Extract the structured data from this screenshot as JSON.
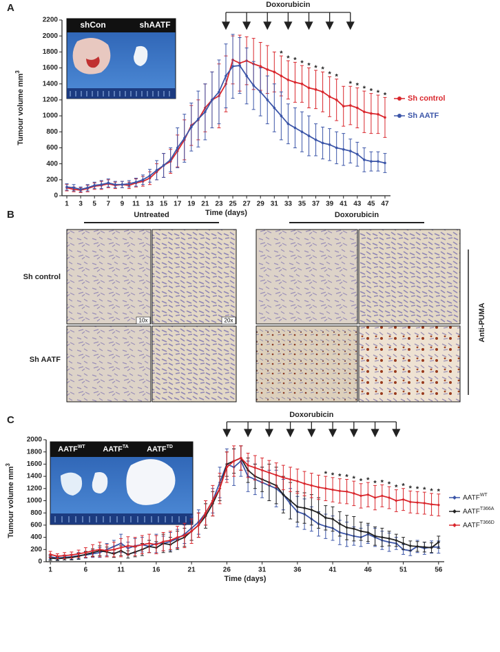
{
  "panel_labels": [
    "A",
    "B",
    "C"
  ],
  "chart_data": [
    {
      "type": "line",
      "ylabel": "Tumour volume mm",
      "ylabel_superscript": "3",
      "xlabel": "Time (days)",
      "x": [
        1,
        2,
        3,
        4,
        5,
        6,
        7,
        8,
        9,
        10,
        11,
        12,
        13,
        14,
        15,
        16,
        17,
        18,
        19,
        20,
        21,
        22,
        23,
        24,
        25,
        26,
        27,
        28,
        29,
        30,
        31,
        32,
        33,
        34,
        35,
        36,
        37,
        38,
        39,
        40,
        41,
        42,
        43,
        44,
        45,
        46,
        47
      ],
      "xlim": [
        0.3,
        47.8
      ],
      "xticks": [
        1,
        3,
        5,
        7,
        9,
        11,
        13,
        15,
        17,
        19,
        21,
        23,
        25,
        27,
        29,
        31,
        33,
        35,
        37,
        39,
        41,
        43,
        45,
        47
      ],
      "ylim": [
        0,
        2200
      ],
      "yticks": [
        0,
        200,
        400,
        600,
        800,
        1000,
        1200,
        1400,
        1600,
        1800,
        2000,
        2200
      ],
      "legend": "right",
      "series": [
        {
          "name": "Sh control",
          "color": "#d9262c",
          "values": [
            100,
            80,
            70,
            90,
            120,
            130,
            150,
            130,
            140,
            130,
            160,
            180,
            220,
            300,
            380,
            430,
            560,
            700,
            880,
            950,
            1100,
            1200,
            1250,
            1400,
            1700,
            1660,
            1690,
            1650,
            1620,
            1580,
            1550,
            1500,
            1450,
            1420,
            1400,
            1350,
            1330,
            1300,
            1240,
            1200,
            1120,
            1130,
            1100,
            1050,
            1030,
            1020,
            980
          ],
          "errors": [
            40,
            30,
            30,
            40,
            40,
            50,
            50,
            40,
            40,
            40,
            50,
            60,
            80,
            100,
            150,
            150,
            200,
            250,
            250,
            250,
            300,
            350,
            400,
            350,
            300,
            350,
            300,
            320,
            300,
            300,
            250,
            250,
            240,
            250,
            230,
            250,
            240,
            250,
            250,
            260,
            250,
            240,
            250,
            260,
            250,
            240,
            250
          ]
        },
        {
          "name": "Sh AATF",
          "color": "#3b55a8",
          "values": [
            110,
            100,
            80,
            100,
            130,
            140,
            160,
            140,
            140,
            150,
            170,
            200,
            250,
            320,
            380,
            450,
            600,
            720,
            860,
            960,
            1050,
            1200,
            1300,
            1500,
            1620,
            1630,
            1500,
            1380,
            1300,
            1200,
            1100,
            1000,
            900,
            850,
            800,
            750,
            700,
            660,
            640,
            600,
            580,
            560,
            520,
            450,
            430,
            430,
            410
          ],
          "errors": [
            40,
            40,
            30,
            40,
            40,
            50,
            50,
            40,
            40,
            40,
            50,
            60,
            80,
            120,
            150,
            150,
            250,
            300,
            300,
            350,
            350,
            350,
            400,
            400,
            400,
            350,
            350,
            300,
            300,
            300,
            300,
            300,
            250,
            250,
            250,
            250,
            200,
            200,
            200,
            200,
            200,
            150,
            150,
            150,
            120,
            120,
            120
          ]
        }
      ],
      "treatment": {
        "label": "Doxorubicin",
        "days": [
          24,
          27,
          30,
          33,
          36,
          39,
          42
        ]
      },
      "annotations": [
        {
          "x": 32,
          "text": "*"
        },
        {
          "x": 33,
          "text": "*"
        },
        {
          "x": 34,
          "text": "*"
        },
        {
          "x": 35,
          "text": "*"
        },
        {
          "x": 36,
          "text": "*"
        },
        {
          "x": 37,
          "text": "*"
        },
        {
          "x": 38,
          "text": "*"
        },
        {
          "x": 39,
          "text": "*"
        },
        {
          "x": 40,
          "text": "*"
        },
        {
          "x": 42,
          "text": "*"
        },
        {
          "x": 43,
          "text": "*"
        },
        {
          "x": 44,
          "text": "*"
        },
        {
          "x": 45,
          "text": "*"
        },
        {
          "x": 46,
          "text": "*"
        },
        {
          "x": 47,
          "text": "*"
        }
      ],
      "inset": {
        "labels": [
          {
            "text": "shCon"
          },
          {
            "text": "shAATF"
          }
        ]
      }
    },
    {
      "type": "line",
      "ylabel": "Tumour volume mm",
      "ylabel_superscript": "3",
      "xlabel": "Time (days)",
      "x": [
        1,
        2,
        3,
        4,
        5,
        6,
        7,
        8,
        9,
        10,
        11,
        12,
        13,
        14,
        15,
        16,
        17,
        18,
        19,
        20,
        21,
        22,
        23,
        24,
        25,
        26,
        27,
        28,
        29,
        30,
        31,
        32,
        33,
        34,
        35,
        36,
        37,
        38,
        39,
        40,
        41,
        42,
        43,
        44,
        45,
        46,
        47,
        48,
        49,
        50,
        51,
        52,
        53,
        54,
        55,
        56
      ],
      "xlim": [
        0.4,
        56.8
      ],
      "xticks": [
        1,
        6,
        11,
        16,
        21,
        26,
        31,
        36,
        41,
        46,
        51,
        56
      ],
      "ylim": [
        0,
        2000
      ],
      "yticks": [
        0,
        200,
        400,
        600,
        800,
        1000,
        1200,
        1400,
        1600,
        1800,
        2000
      ],
      "legend": "right",
      "series": [
        {
          "name": "AATF",
          "name_sup": "WT",
          "color": "#3b55a8",
          "values": [
            80,
            60,
            70,
            80,
            100,
            110,
            130,
            150,
            200,
            250,
            300,
            220,
            260,
            280,
            250,
            300,
            300,
            330,
            380,
            450,
            550,
            650,
            800,
            1000,
            1300,
            1600,
            1550,
            1650,
            1400,
            1350,
            1300,
            1250,
            1200,
            1100,
            950,
            820,
            780,
            700,
            620,
            580,
            550,
            480,
            450,
            420,
            400,
            450,
            400,
            350,
            320,
            300,
            200,
            180,
            250,
            220,
            240,
            240
          ],
          "errors": [
            40,
            30,
            40,
            40,
            50,
            50,
            60,
            80,
            100,
            100,
            150,
            100,
            120,
            120,
            100,
            150,
            120,
            150,
            150,
            150,
            200,
            200,
            200,
            200,
            250,
            250,
            300,
            250,
            250,
            250,
            250,
            250,
            300,
            250,
            250,
            250,
            250,
            200,
            200,
            200,
            200,
            200,
            200,
            150,
            150,
            150,
            150,
            150,
            150,
            100,
            80,
            80,
            100,
            100,
            100,
            100
          ]
        },
        {
          "name": "AATF",
          "name_sup": "T366A",
          "color": "#222222",
          "values": [
            60,
            50,
            60,
            70,
            90,
            120,
            150,
            180,
            160,
            130,
            180,
            120,
            160,
            200,
            250,
            230,
            300,
            280,
            350,
            400,
            500,
            600,
            750,
            950,
            1200,
            1600,
            1650,
            1700,
            1500,
            1400,
            1350,
            1300,
            1250,
            1100,
            1000,
            900,
            880,
            850,
            800,
            720,
            700,
            620,
            560,
            540,
            500,
            480,
            420,
            400,
            380,
            350,
            300,
            260,
            250,
            240,
            230,
            320
          ],
          "errors": [
            40,
            30,
            30,
            40,
            50,
            50,
            60,
            80,
            80,
            60,
            80,
            60,
            80,
            100,
            100,
            100,
            150,
            120,
            150,
            150,
            150,
            200,
            200,
            200,
            200,
            200,
            200,
            200,
            200,
            200,
            200,
            300,
            300,
            300,
            300,
            250,
            250,
            250,
            250,
            200,
            200,
            200,
            200,
            200,
            150,
            150,
            150,
            150,
            120,
            100,
            100,
            80,
            80,
            80,
            80,
            100
          ]
        },
        {
          "name": "AATF",
          "name_sup": "T366D",
          "color": "#d9262c",
          "values": [
            120,
            90,
            100,
            110,
            130,
            150,
            180,
            200,
            180,
            200,
            230,
            260,
            250,
            280,
            300,
            280,
            330,
            350,
            400,
            430,
            500,
            600,
            800,
            1000,
            1200,
            1550,
            1650,
            1700,
            1580,
            1540,
            1500,
            1460,
            1420,
            1380,
            1350,
            1320,
            1280,
            1250,
            1220,
            1200,
            1180,
            1160,
            1150,
            1120,
            1080,
            1100,
            1050,
            1080,
            1050,
            1000,
            1020,
            980,
            970,
            960,
            940,
            930
          ],
          "errors": [
            50,
            40,
            50,
            50,
            60,
            80,
            100,
            120,
            100,
            120,
            150,
            150,
            150,
            150,
            150,
            150,
            150,
            150,
            180,
            200,
            200,
            200,
            200,
            250,
            250,
            250,
            250,
            200,
            200,
            200,
            200,
            200,
            200,
            200,
            200,
            200,
            200,
            200,
            200,
            200,
            200,
            200,
            200,
            200,
            200,
            200,
            200,
            180,
            180,
            180,
            180,
            180,
            180,
            180,
            180,
            180
          ]
        }
      ],
      "treatment": {
        "label": "Doxorubicin",
        "days": [
          26,
          29,
          32,
          35,
          38,
          41,
          44,
          47,
          50
        ]
      },
      "annotations": [
        {
          "x": 40,
          "text": "*"
        },
        {
          "x": 41,
          "text": "*"
        },
        {
          "x": 42,
          "text": "*"
        },
        {
          "x": 43,
          "text": "*"
        },
        {
          "x": 44,
          "text": "*"
        },
        {
          "x": 45,
          "text": "*"
        },
        {
          "x": 46,
          "text": "*"
        },
        {
          "x": 47,
          "text": "*"
        },
        {
          "x": 48,
          "text": "*"
        },
        {
          "x": 49,
          "text": "*"
        },
        {
          "x": 50,
          "text": "*"
        },
        {
          "x": 51,
          "text": "*"
        },
        {
          "x": 52,
          "text": "*"
        },
        {
          "x": 53,
          "text": "*"
        },
        {
          "x": 54,
          "text": "*"
        },
        {
          "x": 55,
          "text": "*"
        },
        {
          "x": 56,
          "text": "*"
        }
      ],
      "inset": {
        "labels": [
          {
            "text": "AATF",
            "sup": "WT"
          },
          {
            "text": "AATF",
            "sup": "TA"
          },
          {
            "text": "AATF",
            "sup": "TD"
          }
        ]
      }
    }
  ],
  "panel_b": {
    "column_groups": [
      "Untreated",
      "Doxorubicin"
    ],
    "rows": [
      "Sh control",
      "Sh AATF"
    ],
    "side_label": "Anti-PUMA",
    "magnifications": [
      "10x",
      "20x"
    ]
  }
}
